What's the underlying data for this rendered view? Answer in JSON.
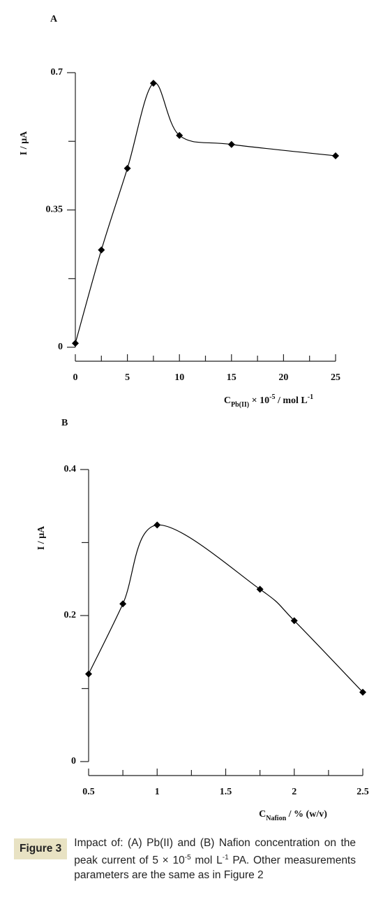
{
  "chart_data": [
    {
      "type": "line",
      "panel_label": "A",
      "y_label": "I / µA",
      "x_label_parts": [
        {
          "text": "C",
          "style": "normal"
        },
        {
          "text": "Pb(II)",
          "style": "sub"
        },
        {
          "text": " × 10",
          "style": "normal"
        },
        {
          "text": "-5",
          "style": "sup"
        },
        {
          "text": " / mol L",
          "style": "normal"
        },
        {
          "text": "-1",
          "style": "sup"
        }
      ],
      "x": [
        0,
        2.5,
        5,
        7.5,
        10,
        15,
        25
      ],
      "values": [
        0.01,
        0.248,
        0.456,
        0.673,
        0.54,
        0.517,
        0.488
      ],
      "color": "#000000",
      "marker": "diamond",
      "smooth": true,
      "xlim": [
        0,
        25
      ],
      "xticks": [
        0,
        5,
        10,
        15,
        20,
        25
      ],
      "xminorticks": [
        2.5,
        7.5,
        12.5,
        17.5,
        22.5
      ],
      "ylim": [
        0,
        0.7
      ],
      "yticks": [
        0,
        0.35,
        0.7
      ],
      "yminorticks": [
        0.175,
        0.525
      ]
    },
    {
      "type": "line",
      "panel_label": "B",
      "y_label": "I / µA",
      "x_label_parts": [
        {
          "text": "C",
          "style": "normal"
        },
        {
          "text": "Nafion",
          "style": "sub"
        },
        {
          "text": " / % (w/v)",
          "style": "normal"
        }
      ],
      "x": [
        0.5,
        0.75,
        1,
        1.75,
        2,
        2.5
      ],
      "values": [
        0.12,
        0.216,
        0.324,
        0.236,
        0.193,
        0.095
      ],
      "color": "#000000",
      "marker": "diamond",
      "smooth": true,
      "xlim": [
        0.5,
        2.5
      ],
      "xticks": [
        0.5,
        1,
        1.5,
        2,
        2.5
      ],
      "xminorticks": [
        0.75,
        1.25,
        1.75,
        2.25
      ],
      "ylim": [
        0,
        0.4
      ],
      "yticks": [
        0,
        0.2,
        0.4
      ],
      "yminorticks": [
        0.1,
        0.3
      ]
    }
  ],
  "figure_caption": {
    "label": "Figure 3",
    "parts": [
      {
        "text": "Impact of: (A) Pb(II) and (B) Nafion concentration on the peak current of 5 × 10",
        "style": "normal"
      },
      {
        "text": "-5",
        "style": "sup"
      },
      {
        "text": " mol L",
        "style": "normal"
      },
      {
        "text": "-1",
        "style": "sup"
      },
      {
        "text": " PA. Other measurements parameters are the same as in Figure 2",
        "style": "normal"
      }
    ]
  }
}
